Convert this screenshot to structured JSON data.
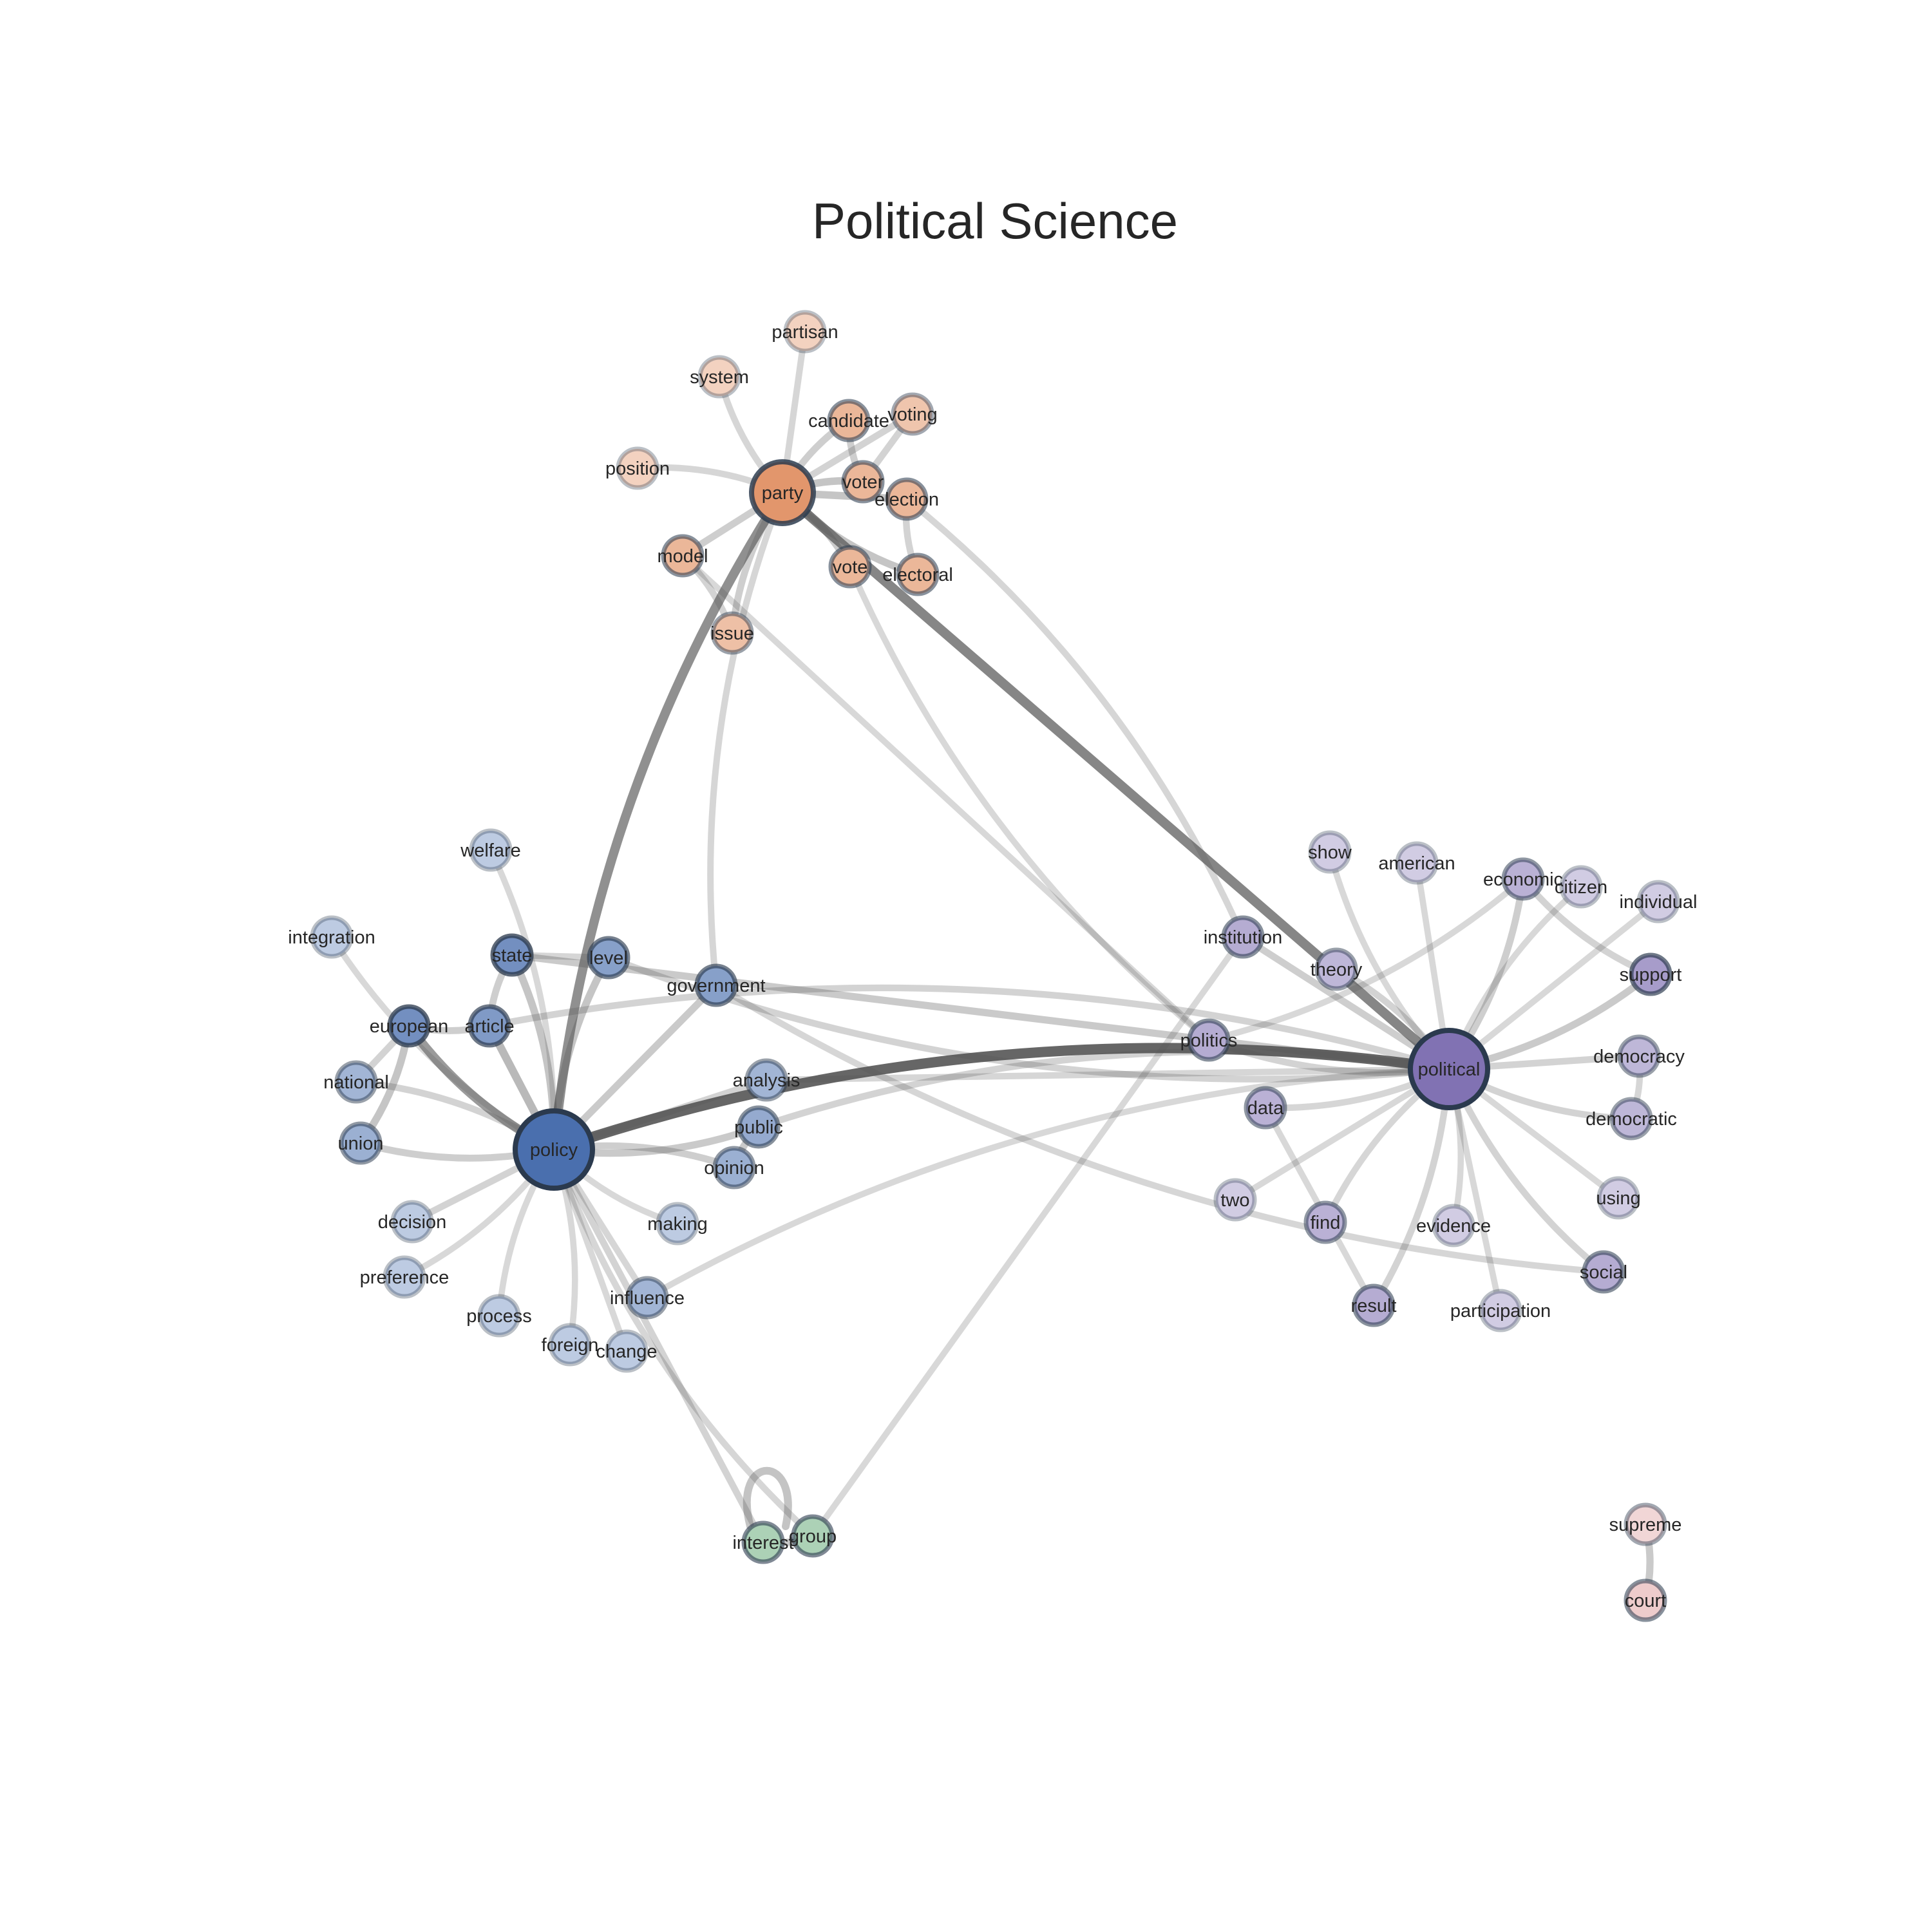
{
  "title": "Political Science",
  "colors": {
    "policy_cluster": "#4a6fae",
    "party_cluster": "#dd8452",
    "political_cluster": "#8172b3",
    "interest_cluster": "#7ab58a",
    "court_cluster": "#e2a8a8",
    "edge": "#555555",
    "node_border": "#2b3a4e"
  },
  "nodes": [
    {
      "id": "policy",
      "label": "policy",
      "group": "policy",
      "weight": 1.0
    },
    {
      "id": "party",
      "label": "party",
      "group": "party",
      "weight": 0.8
    },
    {
      "id": "political",
      "label": "political",
      "group": "political",
      "weight": 1.0
    },
    {
      "id": "partisan",
      "label": "partisan",
      "group": "party",
      "weight": 0.15
    },
    {
      "id": "system",
      "label": "system",
      "group": "party",
      "weight": 0.15
    },
    {
      "id": "candidate",
      "label": "candidate",
      "group": "party",
      "weight": 0.45
    },
    {
      "id": "voting",
      "label": "voting",
      "group": "party",
      "weight": 0.3
    },
    {
      "id": "position",
      "label": "position",
      "group": "party",
      "weight": 0.15
    },
    {
      "id": "voter",
      "label": "voter",
      "group": "party",
      "weight": 0.45
    },
    {
      "id": "election",
      "label": "election",
      "group": "party",
      "weight": 0.45
    },
    {
      "id": "model",
      "label": "model",
      "group": "party",
      "weight": 0.45
    },
    {
      "id": "vote",
      "label": "vote",
      "group": "party",
      "weight": 0.45
    },
    {
      "id": "electoral",
      "label": "electoral",
      "group": "party",
      "weight": 0.45
    },
    {
      "id": "issue",
      "label": "issue",
      "group": "party",
      "weight": 0.35
    },
    {
      "id": "welfare",
      "label": "welfare",
      "group": "policy",
      "weight": 0.15
    },
    {
      "id": "integration",
      "label": "integration",
      "group": "policy",
      "weight": 0.15
    },
    {
      "id": "state",
      "label": "state",
      "group": "policy",
      "weight": 0.7
    },
    {
      "id": "level",
      "label": "level",
      "group": "policy",
      "weight": 0.55
    },
    {
      "id": "government",
      "label": "government",
      "group": "policy",
      "weight": 0.55
    },
    {
      "id": "european",
      "label": "european",
      "group": "policy",
      "weight": 0.7
    },
    {
      "id": "article",
      "label": "article",
      "group": "policy",
      "weight": 0.6
    },
    {
      "id": "national",
      "label": "national",
      "group": "policy",
      "weight": 0.35
    },
    {
      "id": "analysis",
      "label": "analysis",
      "group": "policy",
      "weight": 0.35
    },
    {
      "id": "public",
      "label": "public",
      "group": "policy",
      "weight": 0.45
    },
    {
      "id": "union",
      "label": "union",
      "group": "policy",
      "weight": 0.4
    },
    {
      "id": "opinion",
      "label": "opinion",
      "group": "policy",
      "weight": 0.4
    },
    {
      "id": "decision",
      "label": "decision",
      "group": "policy",
      "weight": 0.15
    },
    {
      "id": "making",
      "label": "making",
      "group": "policy",
      "weight": 0.15
    },
    {
      "id": "preference",
      "label": "preference",
      "group": "policy",
      "weight": 0.15
    },
    {
      "id": "influence",
      "label": "influence",
      "group": "policy",
      "weight": 0.35
    },
    {
      "id": "process",
      "label": "process",
      "group": "policy",
      "weight": 0.15
    },
    {
      "id": "foreign",
      "label": "foreign",
      "group": "policy",
      "weight": 0.15
    },
    {
      "id": "change",
      "label": "change",
      "group": "policy",
      "weight": 0.15
    },
    {
      "id": "show",
      "label": "show",
      "group": "political",
      "weight": 0.15
    },
    {
      "id": "american",
      "label": "american",
      "group": "political",
      "weight": 0.15
    },
    {
      "id": "economic",
      "label": "economic",
      "group": "political",
      "weight": 0.4
    },
    {
      "id": "citizen",
      "label": "citizen",
      "group": "political",
      "weight": 0.15
    },
    {
      "id": "individual",
      "label": "individual",
      "group": "political",
      "weight": 0.15
    },
    {
      "id": "institution",
      "label": "institution",
      "group": "political",
      "weight": 0.45
    },
    {
      "id": "theory",
      "label": "theory",
      "group": "political",
      "weight": 0.35
    },
    {
      "id": "support",
      "label": "support",
      "group": "political",
      "weight": 0.6
    },
    {
      "id": "politics",
      "label": "politics",
      "group": "political",
      "weight": 0.45
    },
    {
      "id": "democracy",
      "label": "democracy",
      "group": "political",
      "weight": 0.35
    },
    {
      "id": "data",
      "label": "data",
      "group": "political",
      "weight": 0.4
    },
    {
      "id": "democratic",
      "label": "democratic",
      "group": "political",
      "weight": 0.35
    },
    {
      "id": "two",
      "label": "two",
      "group": "political",
      "weight": 0.15
    },
    {
      "id": "find",
      "label": "find",
      "group": "political",
      "weight": 0.4
    },
    {
      "id": "evidence",
      "label": "evidence",
      "group": "political",
      "weight": 0.15
    },
    {
      "id": "using",
      "label": "using",
      "group": "political",
      "weight": 0.15
    },
    {
      "id": "social",
      "label": "social",
      "group": "political",
      "weight": 0.45
    },
    {
      "id": "result",
      "label": "result",
      "group": "political",
      "weight": 0.45
    },
    {
      "id": "participation",
      "label": "participation",
      "group": "political",
      "weight": 0.15
    },
    {
      "id": "interest",
      "label": "interest",
      "group": "interest",
      "weight": 0.5
    },
    {
      "id": "group",
      "label": "group",
      "group": "interest",
      "weight": 0.5
    },
    {
      "id": "supreme",
      "label": "supreme",
      "group": "court",
      "weight": 0.3
    },
    {
      "id": "court",
      "label": "court",
      "group": "court",
      "weight": 0.45
    }
  ],
  "edges": [
    {
      "source": "policy",
      "target": "political",
      "weight": 1.0
    },
    {
      "source": "party",
      "target": "political",
      "weight": 0.85
    },
    {
      "source": "party",
      "target": "policy",
      "weight": 0.8
    },
    {
      "source": "policy",
      "target": "european",
      "weight": 0.75
    },
    {
      "source": "policy",
      "target": "article",
      "weight": 0.55
    },
    {
      "source": "policy",
      "target": "state",
      "weight": 0.45
    },
    {
      "source": "policy",
      "target": "level",
      "weight": 0.45
    },
    {
      "source": "policy",
      "target": "government",
      "weight": 0.4
    },
    {
      "source": "policy",
      "target": "public",
      "weight": 0.4
    },
    {
      "source": "policy",
      "target": "opinion",
      "weight": 0.35
    },
    {
      "source": "policy",
      "target": "analysis",
      "weight": 0.3
    },
    {
      "source": "policy",
      "target": "national",
      "weight": 0.3
    },
    {
      "source": "policy",
      "target": "union",
      "weight": 0.35
    },
    {
      "source": "policy",
      "target": "decision",
      "weight": 0.3
    },
    {
      "source": "policy",
      "target": "making",
      "weight": 0.2
    },
    {
      "source": "policy",
      "target": "preference",
      "weight": 0.2
    },
    {
      "source": "policy",
      "target": "influence",
      "weight": 0.25
    },
    {
      "source": "policy",
      "target": "process",
      "weight": 0.2
    },
    {
      "source": "policy",
      "target": "foreign",
      "weight": 0.2
    },
    {
      "source": "policy",
      "target": "change",
      "weight": 0.2
    },
    {
      "source": "policy",
      "target": "welfare",
      "weight": 0.2
    },
    {
      "source": "policy",
      "target": "integration",
      "weight": 0.2
    },
    {
      "source": "policy",
      "target": "interest",
      "weight": 0.3
    },
    {
      "source": "policy",
      "target": "group",
      "weight": 0.25
    },
    {
      "source": "european",
      "target": "union",
      "weight": 0.45
    },
    {
      "source": "european",
      "target": "national",
      "weight": 0.3
    },
    {
      "source": "european",
      "target": "article",
      "weight": 0.35
    },
    {
      "source": "article",
      "target": "state",
      "weight": 0.35
    },
    {
      "source": "state",
      "target": "political",
      "weight": 0.4
    },
    {
      "source": "level",
      "target": "political",
      "weight": 0.3
    },
    {
      "source": "article",
      "target": "political",
      "weight": 0.3
    },
    {
      "source": "level",
      "target": "state",
      "weight": 0.25
    },
    {
      "source": "public",
      "target": "opinion",
      "weight": 0.4
    },
    {
      "source": "public",
      "target": "political",
      "weight": 0.3
    },
    {
      "source": "analysis",
      "target": "political",
      "weight": 0.25
    },
    {
      "source": "government",
      "target": "social",
      "weight": 0.25
    },
    {
      "source": "party",
      "target": "voter",
      "weight": 0.45
    },
    {
      "source": "party",
      "target": "election",
      "weight": 0.45
    },
    {
      "source": "party",
      "target": "electoral",
      "weight": 0.45
    },
    {
      "source": "party",
      "target": "vote",
      "weight": 0.4
    },
    {
      "source": "party",
      "target": "model",
      "weight": 0.35
    },
    {
      "source": "party",
      "target": "issue",
      "weight": 0.35
    },
    {
      "source": "party",
      "target": "system",
      "weight": 0.25
    },
    {
      "source": "party",
      "target": "partisan",
      "weight": 0.25
    },
    {
      "source": "party",
      "target": "position",
      "weight": 0.25
    },
    {
      "source": "party",
      "target": "candidate",
      "weight": 0.35
    },
    {
      "source": "party",
      "target": "voting",
      "weight": 0.3
    },
    {
      "source": "party",
      "target": "government",
      "weight": 0.25
    },
    {
      "source": "voter",
      "target": "candidate",
      "weight": 0.35
    },
    {
      "source": "voter",
      "target": "voting",
      "weight": 0.3
    },
    {
      "source": "election",
      "target": "electoral",
      "weight": 0.3
    },
    {
      "source": "model",
      "target": "issue",
      "weight": 0.3
    },
    {
      "source": "model",
      "target": "politics",
      "weight": 0.2
    },
    {
      "source": "vote",
      "target": "politics",
      "weight": 0.2
    },
    {
      "source": "election",
      "target": "institution",
      "weight": 0.25
    },
    {
      "source": "political",
      "target": "institution",
      "weight": 0.35
    },
    {
      "source": "political",
      "target": "theory",
      "weight": 0.3
    },
    {
      "source": "political",
      "target": "show",
      "weight": 0.2
    },
    {
      "source": "political",
      "target": "american",
      "weight": 0.2
    },
    {
      "source": "political",
      "target": "economic",
      "weight": 0.35
    },
    {
      "source": "political",
      "target": "citizen",
      "weight": 0.2
    },
    {
      "source": "political",
      "target": "individual",
      "weight": 0.2
    },
    {
      "source": "political",
      "target": "support",
      "weight": 0.4
    },
    {
      "source": "political",
      "target": "politics",
      "weight": 0.3
    },
    {
      "source": "political",
      "target": "democracy",
      "weight": 0.3
    },
    {
      "source": "political",
      "target": "democratic",
      "weight": 0.3
    },
    {
      "source": "political",
      "target": "data",
      "weight": 0.25
    },
    {
      "source": "political",
      "target": "two",
      "weight": 0.2
    },
    {
      "source": "political",
      "target": "find",
      "weight": 0.25
    },
    {
      "source": "political",
      "target": "evidence",
      "weight": 0.2
    },
    {
      "source": "political",
      "target": "using",
      "weight": 0.2
    },
    {
      "source": "political",
      "target": "social",
      "weight": 0.3
    },
    {
      "source": "political",
      "target": "result",
      "weight": 0.3
    },
    {
      "source": "political",
      "target": "participation",
      "weight": 0.2
    },
    {
      "source": "economic",
      "target": "support",
      "weight": 0.3
    },
    {
      "source": "democracy",
      "target": "democratic",
      "weight": 0.25
    },
    {
      "source": "data",
      "target": "result",
      "weight": 0.2
    },
    {
      "source": "politics",
      "target": "economic",
      "weight": 0.2
    },
    {
      "source": "influence",
      "target": "political",
      "weight": 0.2
    },
    {
      "source": "group",
      "target": "institution",
      "weight": 0.2
    },
    {
      "source": "interest",
      "target": "group",
      "weight": 0.4
    },
    {
      "source": "supreme",
      "target": "court",
      "weight": 0.4
    }
  ]
}
